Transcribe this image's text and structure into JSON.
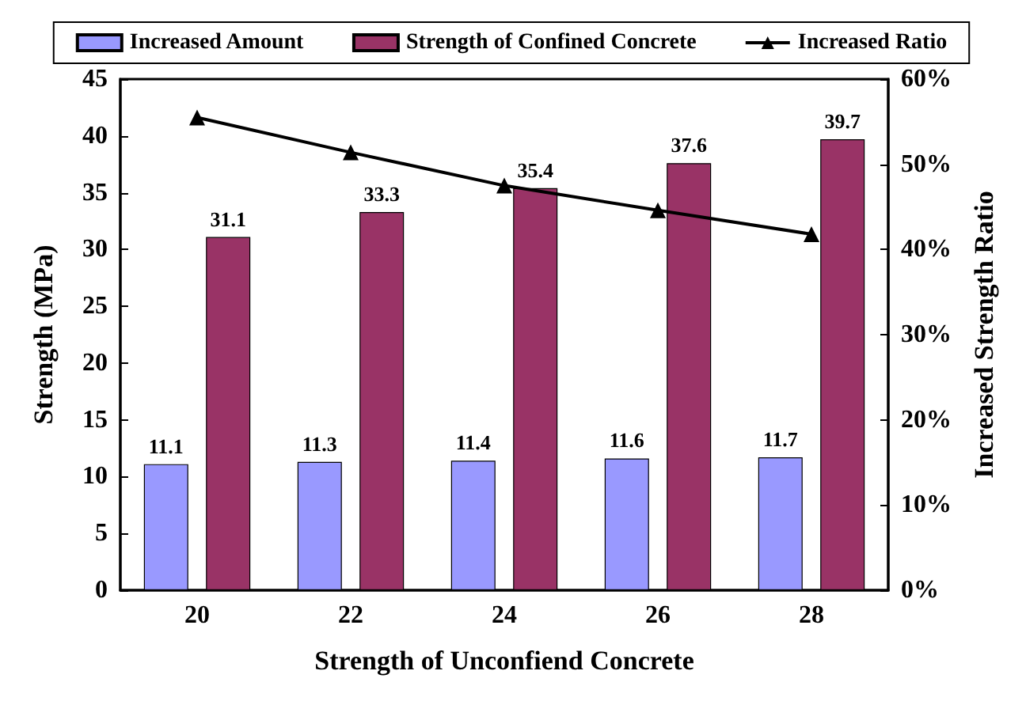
{
  "chart_data": {
    "type": "bar",
    "xlabel": "Strength of Unconfiend Concrete",
    "ylabel": "Strength (MPa)",
    "y2label": "Increased Strength Ratio",
    "categories": [
      "20",
      "22",
      "24",
      "26",
      "28"
    ],
    "series": [
      {
        "name": "Increased Amount",
        "color": "#9999ff",
        "values": [
          11.1,
          11.3,
          11.4,
          11.6,
          11.7
        ],
        "value_labels": [
          "11.1",
          "11.3",
          "11.4",
          "11.6",
          "11.7"
        ]
      },
      {
        "name": "Strength of Confined Concrete",
        "color": "#993366",
        "values": [
          31.1,
          33.3,
          35.4,
          37.6,
          39.7
        ],
        "value_labels": [
          "31.1",
          "33.3",
          "35.4",
          "37.6",
          "39.7"
        ]
      },
      {
        "name": "Increased Ratio",
        "type": "line",
        "axis": "y2",
        "color": "#000000",
        "marker": "triangle",
        "values": [
          55.5,
          51.4,
          47.5,
          44.6,
          41.8
        ]
      }
    ],
    "ylim": [
      0,
      45
    ],
    "yticks": [
      0,
      5,
      10,
      15,
      20,
      25,
      30,
      35,
      40,
      45
    ],
    "y2lim": [
      0,
      60
    ],
    "y2ticks": [
      {
        "value": 0,
        "label": "0%"
      },
      {
        "value": 10,
        "label": "10%"
      },
      {
        "value": 20,
        "label": "20%"
      },
      {
        "value": 30,
        "label": "30%"
      },
      {
        "value": 40,
        "label": "40%"
      },
      {
        "value": 50,
        "label": "50%"
      },
      {
        "value": 60,
        "label": "60%"
      }
    ],
    "legend": "top",
    "grid": false
  }
}
